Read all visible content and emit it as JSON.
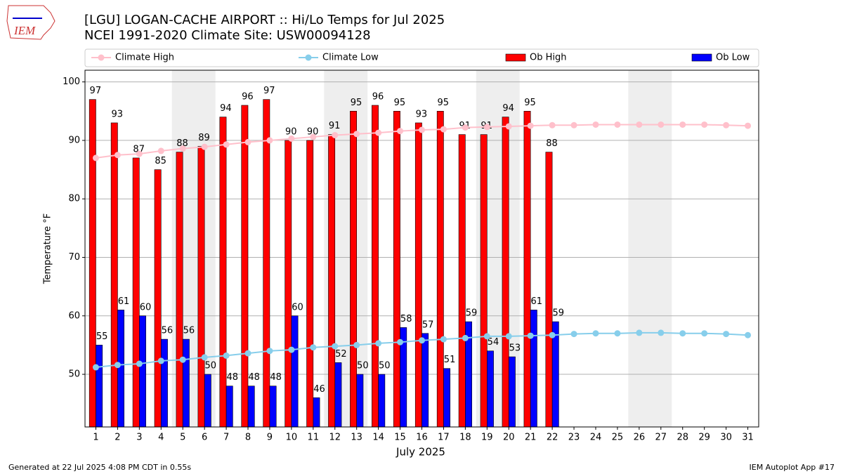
{
  "chart_data": {
    "type": "bar_line",
    "title": "[LGU] LOGAN-CACHE AIRPORT :: Hi/Lo Temps for Jul 2025",
    "subtitle": "NCEI 1991-2020 Climate Site: USW00094128",
    "logo_text": "IEM",
    "x_label": "July 2025",
    "y_label": "Temperature °F",
    "footer_left": "Generated at 22 Jul 2025 4:08 PM CDT in 0.55s",
    "footer_right": "IEM Autoplot App #17",
    "x": [
      1,
      2,
      3,
      4,
      5,
      6,
      7,
      8,
      9,
      10,
      11,
      12,
      13,
      14,
      15,
      16,
      17,
      18,
      19,
      20,
      21,
      22,
      23,
      24,
      25,
      26,
      27,
      28,
      29,
      30,
      31
    ],
    "xticks": [
      1,
      2,
      3,
      4,
      5,
      6,
      7,
      8,
      9,
      10,
      11,
      12,
      13,
      14,
      15,
      16,
      17,
      18,
      19,
      20,
      21,
      22,
      23,
      24,
      25,
      26,
      27,
      28,
      29,
      30,
      31
    ],
    "xlim": [
      0.5,
      31.5
    ],
    "ylim": [
      41,
      102
    ],
    "yticks": [
      50,
      60,
      70,
      80,
      90,
      100
    ],
    "grid": true,
    "legend": "top",
    "series": [
      {
        "name": "Climate High",
        "color": "#ffc0cb",
        "kind": "line",
        "values": [
          87.0,
          87.5,
          87.7,
          88.2,
          88.6,
          88.9,
          89.3,
          89.7,
          90.0,
          90.3,
          90.6,
          90.9,
          91.1,
          91.3,
          91.6,
          91.8,
          91.9,
          92.2,
          92.3,
          92.4,
          92.5,
          92.6,
          92.6,
          92.7,
          92.7,
          92.7,
          92.7,
          92.7,
          92.7,
          92.6,
          92.5
        ]
      },
      {
        "name": "Climate Low",
        "color": "#87ceeb",
        "kind": "line",
        "values": [
          51.2,
          51.6,
          51.8,
          52.3,
          52.5,
          52.9,
          53.2,
          53.6,
          54.0,
          54.2,
          54.6,
          54.8,
          55.0,
          55.3,
          55.5,
          55.8,
          56.0,
          56.2,
          56.5,
          56.5,
          56.6,
          56.7,
          56.9,
          57.0,
          57.0,
          57.1,
          57.1,
          57.0,
          57.0,
          56.9,
          56.7
        ]
      },
      {
        "name": "Ob High",
        "color": "#ff0000",
        "kind": "bar",
        "values": [
          97,
          93,
          87,
          85,
          88,
          89,
          94,
          96,
          97,
          90,
          90,
          91,
          95,
          96,
          95,
          93,
          95,
          91,
          91,
          94,
          95,
          88,
          null,
          null,
          null,
          null,
          null,
          null,
          null,
          null,
          null
        ]
      },
      {
        "name": "Ob Low",
        "color": "#0000ff",
        "kind": "bar",
        "values": [
          55,
          61,
          60,
          56,
          56,
          50,
          48,
          48,
          48,
          60,
          46,
          52,
          50,
          50,
          58,
          57,
          51,
          59,
          54,
          53,
          61,
          59,
          null,
          null,
          null,
          null,
          null,
          null,
          null,
          null,
          null
        ]
      }
    ]
  }
}
